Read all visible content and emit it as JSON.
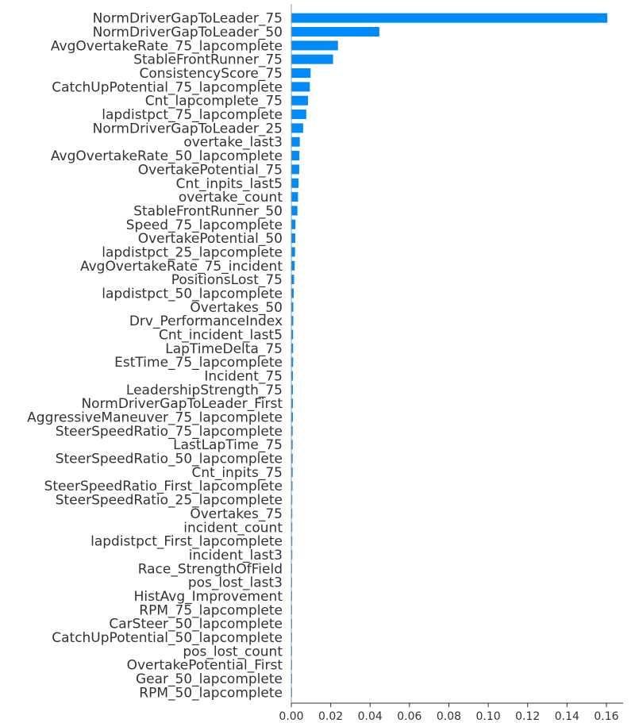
{
  "chart_data": {
    "type": "bar",
    "orientation": "horizontal",
    "title": "",
    "xlabel": "",
    "ylabel": "",
    "xlim": [
      0,
      0.17
    ],
    "grid": false,
    "legend": "none",
    "bar_color": "#008bfb",
    "axis_color": "#999999",
    "text_color": "#333333",
    "x_ticks": [
      0.0,
      0.02,
      0.04,
      0.06,
      0.08,
      0.1,
      0.12,
      0.14,
      0.16
    ],
    "x_tick_labels": [
      "0.00",
      "0.02",
      "0.04",
      "0.06",
      "0.08",
      "0.10",
      "0.12",
      "0.14",
      "0.16"
    ],
    "categories": [
      "NormDriverGapToLeader_75",
      "NormDriverGapToLeader_50",
      "AvgOvertakeRate_75_lapcomplete",
      "StableFrontRunner_75",
      "ConsistencyScore_75",
      "CatchUpPotential_75_lapcomplete",
      "Cnt_lapcomplete_75",
      "lapdistpct_75_lapcomplete",
      "NormDriverGapToLeader_25",
      "overtake_last3",
      "AvgOvertakeRate_50_lapcomplete",
      "OvertakePotential_75",
      "Cnt_inpits_last5",
      "overtake_count",
      "StableFrontRunner_50",
      "Speed_75_lapcomplete",
      "OvertakePotential_50",
      "lapdistpct_25_lapcomplete",
      "AvgOvertakeRate_75_incident",
      "PositionsLost_75",
      "lapdistpct_50_lapcomplete",
      "Overtakes_50",
      "Drv_PerformanceIndex",
      "Cnt_incident_last5",
      "LapTimeDelta_75",
      "EstTime_75_lapcomplete",
      "Incident_75",
      "LeadershipStrength_75",
      "NormDriverGapToLeader_First",
      "AggressiveManeuver_75_lapcomplete",
      "SteerSpeedRatio_75_lapcomplete",
      "LastLapTime_75",
      "SteerSpeedRatio_50_lapcomplete",
      "Cnt_inpits_75",
      "SteerSpeedRatio_First_lapcomplete",
      "SteerSpeedRatio_25_lapcomplete",
      "Overtakes_75",
      "incident_count",
      "lapdistpct_First_lapcomplete",
      "incident_last3",
      "Race_StrengthOfField",
      "pos_lost_last3",
      "HistAvg_Improvement",
      "RPM_75_lapcomplete",
      "CarSteer_50_lapcomplete",
      "CatchUpPotential_50_lapcomplete",
      "pos_lost_count",
      "OvertakePotential_First",
      "Gear_50_lapcomplete",
      "RPM_50_lapcomplete"
    ],
    "values": [
      0.1605,
      0.0447,
      0.0237,
      0.0212,
      0.0098,
      0.0094,
      0.0085,
      0.0076,
      0.006,
      0.0043,
      0.0041,
      0.004,
      0.0037,
      0.0034,
      0.0031,
      0.0021,
      0.002,
      0.0019,
      0.0017,
      0.0014,
      0.0012,
      0.001,
      0.001,
      0.0009,
      0.0009,
      0.0009,
      0.0008,
      0.0008,
      0.0008,
      0.0008,
      0.0007,
      0.0007,
      0.0007,
      0.0007,
      0.0006,
      0.0005,
      0.0005,
      0.0005,
      0.0005,
      0.0005,
      0.0004,
      0.0004,
      0.0004,
      0.0004,
      0.0004,
      0.0003,
      0.0003,
      0.0003,
      0.0003,
      0.0003
    ]
  }
}
